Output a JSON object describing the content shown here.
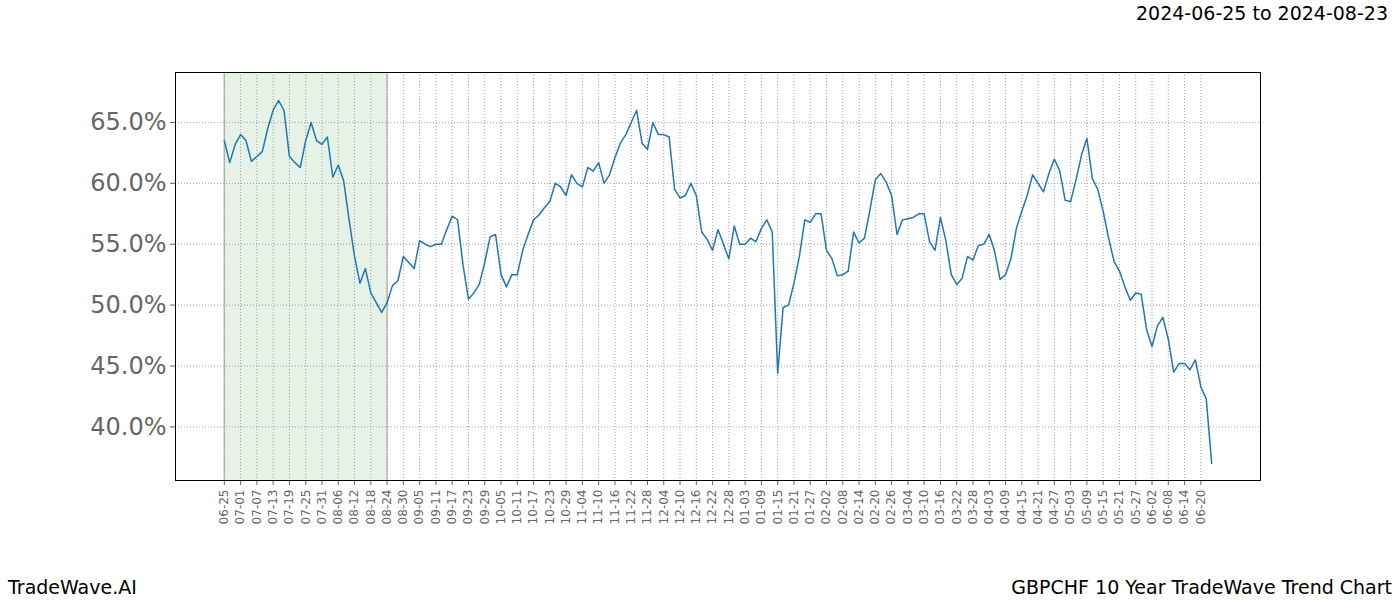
{
  "chart_data": {
    "type": "line",
    "title": "2024-06-25 to 2024-08-23",
    "source": "TradeWave.AI",
    "caption": "GBPCHF 10 Year TradeWave Trend Chart",
    "categories": [
      "06-25",
      null,
      null,
      "07-01",
      null,
      null,
      "07-07",
      null,
      null,
      "07-13",
      null,
      null,
      "07-19",
      null,
      null,
      "07-25",
      null,
      null,
      "07-31",
      null,
      null,
      "08-06",
      null,
      null,
      "08-12",
      null,
      null,
      "08-18",
      null,
      null,
      "08-24",
      null,
      null,
      "08-30",
      null,
      null,
      "09-05",
      null,
      null,
      "09-11",
      null,
      null,
      "09-17",
      null,
      null,
      "09-23",
      null,
      null,
      "09-29",
      null,
      null,
      "10-05",
      null,
      null,
      "10-11",
      null,
      null,
      "10-17",
      null,
      null,
      "10-23",
      null,
      null,
      "10-29",
      null,
      null,
      "11-04",
      null,
      null,
      "11-10",
      null,
      null,
      "11-16",
      null,
      null,
      "11-22",
      null,
      null,
      "11-28",
      null,
      null,
      "12-04",
      null,
      null,
      "12-10",
      null,
      null,
      "12-16",
      null,
      null,
      "12-22",
      null,
      null,
      "12-28",
      null,
      null,
      "01-03",
      null,
      null,
      "01-09",
      null,
      null,
      "01-15",
      null,
      null,
      "01-21",
      null,
      null,
      "01-27",
      null,
      null,
      "02-02",
      null,
      null,
      "02-08",
      null,
      null,
      "02-14",
      null,
      null,
      "02-20",
      null,
      null,
      "02-26",
      null,
      null,
      "03-04",
      null,
      null,
      "03-10",
      null,
      null,
      "03-16",
      null,
      null,
      "03-22",
      null,
      null,
      "03-28",
      null,
      null,
      "04-03",
      null,
      null,
      "04-09",
      null,
      null,
      "04-15",
      null,
      null,
      "04-21",
      null,
      null,
      "04-27",
      null,
      null,
      "05-03",
      null,
      null,
      "05-09",
      null,
      null,
      "05-15",
      null,
      null,
      "05-21",
      null,
      null,
      "05-27",
      null,
      null,
      "06-02",
      null,
      null,
      "06-08",
      null,
      null,
      "06-14",
      null,
      null,
      "06-20",
      null,
      null
    ],
    "values": [
      63.5,
      61.7,
      63.2,
      64.0,
      63.5,
      61.8,
      62.2,
      62.6,
      64.5,
      66.0,
      66.8,
      66.0,
      62.2,
      61.7,
      61.3,
      63.5,
      65.0,
      63.5,
      63.2,
      63.8,
      60.5,
      61.5,
      60.2,
      57.0,
      54.0,
      51.8,
      53.0,
      51.0,
      50.2,
      49.4,
      50.2,
      51.6,
      52.0,
      54.0,
      53.5,
      53.0,
      55.3,
      55.0,
      54.8,
      55.0,
      55.0,
      56.2,
      57.3,
      57.0,
      53.3,
      50.5,
      51.0,
      51.7,
      53.5,
      55.6,
      55.8,
      52.5,
      51.5,
      52.5,
      52.5,
      54.5,
      55.8,
      57.0,
      57.4,
      58.0,
      58.5,
      60.0,
      59.7,
      59.0,
      60.7,
      60.0,
      59.7,
      61.3,
      61.0,
      61.7,
      60.0,
      60.7,
      62.1,
      63.3,
      64.0,
      65.0,
      66.0,
      63.3,
      62.8,
      65.0,
      64.0,
      64.0,
      63.8,
      59.5,
      58.8,
      59.0,
      60.0,
      59.0,
      56.0,
      55.4,
      54.5,
      56.2,
      55.0,
      53.8,
      56.5,
      55.0,
      55.0,
      55.5,
      55.2,
      56.3,
      57.0,
      56.0,
      44.4,
      49.8,
      50.0,
      51.8,
      54.0,
      57.0,
      56.8,
      57.5,
      57.5,
      54.5,
      53.8,
      52.4,
      52.5,
      52.8,
      56.0,
      55.1,
      55.5,
      57.8,
      60.3,
      60.8,
      60.1,
      59.0,
      55.8,
      57.0,
      57.1,
      57.2,
      57.5,
      57.5,
      55.2,
      54.5,
      57.2,
      55.3,
      52.5,
      51.7,
      52.2,
      54.0,
      53.7,
      54.9,
      55.0,
      55.8,
      54.4,
      52.1,
      52.5,
      53.8,
      56.3,
      57.7,
      59.0,
      60.7,
      60.0,
      59.3,
      60.8,
      62.0,
      61.0,
      58.6,
      58.5,
      60.3,
      62.3,
      63.7,
      60.4,
      59.5,
      57.7,
      55.5,
      53.6,
      52.8,
      51.5,
      50.4,
      51.0,
      50.9,
      48.0,
      46.6,
      48.3,
      49.0,
      47.2,
      44.5,
      45.2,
      45.2,
      44.7,
      45.5,
      43.3,
      42.3,
      37.0
    ],
    "color": "#1f77b4",
    "highlight": {
      "start": "06-25",
      "end": "08-24"
    },
    "ylim": [
      35.6,
      69.1
    ],
    "yticks": [
      {
        "value": 40,
        "label": "40.0%"
      },
      {
        "value": 45,
        "label": "45.0%"
      },
      {
        "value": 50,
        "label": "50.0%"
      },
      {
        "value": 55,
        "label": "55.0%"
      },
      {
        "value": 60,
        "label": "60.0%"
      },
      {
        "value": 65,
        "label": "65.0%"
      }
    ],
    "grid": true
  }
}
